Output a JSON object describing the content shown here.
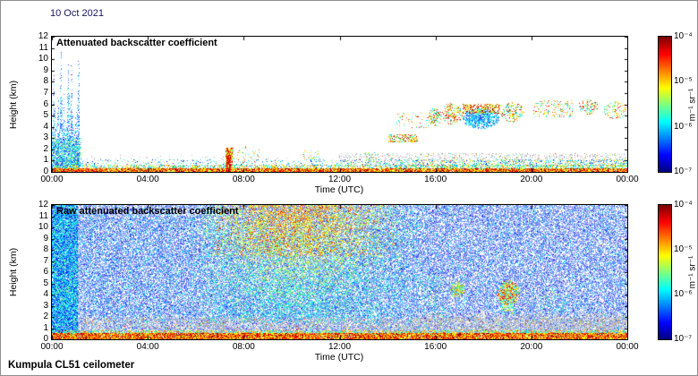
{
  "page": {
    "date_label": "10 Oct 2021",
    "footer": "Kumpula CL51 ceilometer"
  },
  "colors": {
    "date_text": "#15155e",
    "axis_text": "#000000",
    "colormap": "jet"
  },
  "chart_data": [
    {
      "id": "top",
      "type": "heatmap",
      "title": "Attenuated backscatter coefficient",
      "xlabel": "Time (UTC)",
      "ylabel": "Height (km)",
      "x_ticks": [
        "00:00",
        "04:00",
        "08:00",
        "12:00",
        "16:00",
        "20:00",
        "00:00"
      ],
      "y_ticks": [
        0,
        1,
        2,
        3,
        4,
        5,
        6,
        7,
        8,
        9,
        10,
        11,
        12
      ],
      "x_range_hours": [
        0,
        24
      ],
      "y_range_km": [
        0,
        12
      ],
      "colorbar": {
        "ticks": [
          "10⁻⁴",
          "10⁻⁵",
          "10⁻⁶",
          "10⁻⁷"
        ],
        "unit": "m⁻¹ sr⁻¹",
        "scale": "log",
        "min": "1e-7",
        "max": "1e-4",
        "colormap": "jet"
      },
      "seed": 11,
      "features": [
        {
          "kind": "speckle",
          "x": [
            0.03,
            1
          ],
          "h": [
            0.15,
            1.5
          ],
          "density": 0.05,
          "gray": true
        },
        {
          "kind": "speckle",
          "x": [
            0.5,
            1
          ],
          "h": [
            0.5,
            1.6
          ],
          "density": 0.18,
          "gray": true
        },
        {
          "kind": "speckle",
          "x": [
            0.5,
            1
          ],
          "h": [
            0.5,
            1.6
          ],
          "density": 0.03,
          "v": [
            0.25,
            0.85
          ]
        },
        {
          "kind": "plume",
          "x": [
            0,
            0.048
          ],
          "h": [
            0.5,
            11
          ],
          "density": 0.8,
          "v": [
            0.08,
            0.42
          ],
          "alpha": 0.75
        },
        {
          "kind": "speckle",
          "x": [
            0,
            0.05
          ],
          "h": [
            0,
            3
          ],
          "density": 0.5,
          "v": [
            0.15,
            0.6
          ],
          "alpha": 0.8
        },
        {
          "kind": "speckle",
          "x": [
            0,
            1
          ],
          "h": [
            0.25,
            0.6
          ],
          "density": 0.45,
          "v": [
            0.25,
            0.8
          ]
        },
        {
          "kind": "speckle",
          "x": [
            0,
            1
          ],
          "h": [
            0,
            0.25
          ],
          "density": 0.95,
          "v": [
            0.55,
            1
          ]
        },
        {
          "kind": "speckle",
          "x": [
            0,
            1
          ],
          "h": [
            0.6,
            1.1
          ],
          "density": 0.1,
          "v": [
            0.1,
            0.55
          ]
        },
        {
          "kind": "speckle",
          "x": [
            0.6,
            1
          ],
          "h": [
            0.3,
            1.1
          ],
          "density": 0.15,
          "v": [
            0.2,
            0.8
          ]
        },
        {
          "kind": "speckle",
          "x": [
            0.302,
            0.313
          ],
          "h": [
            0,
            2.1
          ],
          "density": 0.85,
          "v": [
            0.45,
            1
          ]
        },
        {
          "kind": "speckle",
          "x": [
            0.304,
            0.31
          ],
          "h": [
            0,
            1.5
          ],
          "density": 0.9,
          "v": [
            0.75,
            1
          ]
        },
        {
          "kind": "speckle",
          "x": [
            0.315,
            0.36
          ],
          "h": [
            0.8,
            2.3
          ],
          "density": 0.1,
          "v": [
            0.3,
            0.9
          ]
        },
        {
          "kind": "speckle",
          "x": [
            0.435,
            0.465
          ],
          "h": [
            1.1,
            1.9
          ],
          "density": 0.12,
          "v": [
            0.3,
            0.8
          ]
        },
        {
          "kind": "speckle",
          "x": [
            0.54,
            0.565
          ],
          "h": [
            0.9,
            1.7
          ],
          "density": 0.1,
          "v": [
            0.3,
            0.75
          ]
        },
        {
          "kind": "speckle",
          "x": [
            0.585,
            0.635
          ],
          "h": [
            2.7,
            3.3
          ],
          "density": 0.5,
          "v": [
            0.35,
            0.95
          ]
        },
        {
          "kind": "speckle",
          "x": [
            0.6,
            0.655
          ],
          "h": [
            3.9,
            5.2
          ],
          "density": 0.1,
          "v": [
            0.3,
            0.9
          ]
        },
        {
          "kind": "blob",
          "cx": 0.665,
          "ch": 4.9,
          "rx": 0.012,
          "rh": 0.8,
          "density": 0.55,
          "v": [
            0.3,
            0.95
          ]
        },
        {
          "kind": "blob",
          "cx": 0.695,
          "ch": 5.2,
          "rx": 0.018,
          "rh": 1.0,
          "density": 0.5,
          "v": [
            0.3,
            0.95
          ]
        },
        {
          "kind": "blob",
          "cx": 0.745,
          "ch": 4.8,
          "rx": 0.032,
          "rh": 0.95,
          "density": 0.85,
          "v": [
            0.12,
            0.45
          ],
          "alpha": 0.85
        },
        {
          "kind": "speckle",
          "x": [
            0.714,
            0.78
          ],
          "h": [
            5.2,
            6.0
          ],
          "density": 0.55,
          "v": [
            0.45,
            1
          ]
        },
        {
          "kind": "blob",
          "cx": 0.8,
          "ch": 5.3,
          "rx": 0.02,
          "rh": 0.9,
          "density": 0.45,
          "v": [
            0.3,
            0.95
          ]
        },
        {
          "kind": "speckle",
          "x": [
            0.838,
            0.905
          ],
          "h": [
            4.9,
            6.3
          ],
          "density": 0.2,
          "v": [
            0.3,
            0.9
          ]
        },
        {
          "kind": "blob",
          "cx": 0.932,
          "ch": 5.8,
          "rx": 0.018,
          "rh": 0.7,
          "density": 0.4,
          "v": [
            0.3,
            0.95
          ]
        },
        {
          "kind": "blob",
          "cx": 0.978,
          "ch": 5.5,
          "rx": 0.02,
          "rh": 0.8,
          "density": 0.35,
          "v": [
            0.3,
            0.9
          ]
        }
      ]
    },
    {
      "id": "bottom",
      "type": "heatmap",
      "title": "Raw attenuated backscatter coefficient",
      "xlabel": "Time (UTC)",
      "ylabel": "Height (km)",
      "x_ticks": [
        "00:00",
        "04:00",
        "08:00",
        "12:00",
        "16:00",
        "20:00",
        "00:00"
      ],
      "y_ticks": [
        0,
        1,
        2,
        3,
        4,
        5,
        6,
        7,
        8,
        9,
        10,
        11,
        12
      ],
      "x_range_hours": [
        0,
        24
      ],
      "y_range_km": [
        0,
        12
      ],
      "colorbar": {
        "ticks": [
          "10⁻⁴",
          "10⁻⁵",
          "10⁻⁶",
          "10⁻⁷"
        ],
        "unit": "m⁻¹ sr⁻¹",
        "scale": "log",
        "min": "1e-7",
        "max": "1e-4",
        "colormap": "jet"
      },
      "seed": 99,
      "features": [
        {
          "kind": "speckle",
          "x": [
            0,
            1
          ],
          "h": [
            0,
            12
          ],
          "density": 0.6,
          "v": [
            0.02,
            0.3
          ],
          "alpha": 0.5
        },
        {
          "kind": "speckle",
          "x": [
            0,
            1
          ],
          "h": [
            0,
            12
          ],
          "density": 0.12,
          "v": [
            0.05,
            0.45
          ],
          "alpha": 0.8
        },
        {
          "kind": "speckle",
          "x": [
            0,
            0.045
          ],
          "h": [
            0,
            12
          ],
          "density": 0.85,
          "v": [
            0.1,
            0.5
          ],
          "alpha": 0.9
        },
        {
          "kind": "speckle",
          "x": [
            0.05,
            0.26
          ],
          "h": [
            2,
            11
          ],
          "density": 0.1,
          "v": [
            0.1,
            0.5
          ],
          "alpha": 0.7
        },
        {
          "kind": "speckle",
          "x": [
            0.26,
            0.64
          ],
          "h": [
            1.5,
            12
          ],
          "density": 0.4,
          "v": [
            0.2,
            0.85
          ],
          "vgrad": "up",
          "gx": 0.43,
          "gw": 0.17,
          "alpha": 0.85
        },
        {
          "kind": "speckle",
          "x": [
            0.28,
            0.6
          ],
          "h": [
            7.5,
            12
          ],
          "density": 0.25,
          "v": [
            0.5,
            0.9
          ],
          "gx": 0.42,
          "gw": 0.13,
          "alpha": 0.9
        },
        {
          "kind": "speckle",
          "x": [
            0.05,
            1
          ],
          "h": [
            0.5,
            1.9
          ],
          "density": 0.4,
          "gray": true
        },
        {
          "kind": "speckle",
          "x": [
            0.05,
            1
          ],
          "h": [
            0.5,
            1.9
          ],
          "density": 0.05,
          "v": [
            0.2,
            0.9
          ]
        },
        {
          "kind": "speckle",
          "x": [
            0.63,
            1
          ],
          "h": [
            0.5,
            2.3
          ],
          "density": 0.3,
          "gray": true
        },
        {
          "kind": "speckle",
          "x": [
            0,
            1
          ],
          "h": [
            0.4,
            0.75
          ],
          "density": 0.5,
          "v": [
            0.3,
            0.8
          ]
        },
        {
          "kind": "speckle",
          "x": [
            0,
            1
          ],
          "h": [
            0,
            0.5
          ],
          "density": 0.95,
          "v": [
            0.55,
            1
          ]
        },
        {
          "kind": "speckle",
          "x": [
            0.645,
            0.68
          ],
          "h": [
            2,
            5.8
          ],
          "density": 0.12,
          "v": [
            0.25,
            0.6
          ]
        },
        {
          "kind": "blob",
          "cx": 0.705,
          "ch": 4.5,
          "rx": 0.014,
          "rh": 0.75,
          "density": 0.8,
          "v": [
            0.35,
            0.8
          ]
        },
        {
          "kind": "blob",
          "cx": 0.792,
          "ch": 4.2,
          "rx": 0.02,
          "rh": 1.15,
          "density": 0.85,
          "v": [
            0.35,
            0.9
          ]
        },
        {
          "kind": "speckle",
          "x": [
            0.78,
            0.805
          ],
          "h": [
            2.3,
            3.4
          ],
          "density": 0.35,
          "v": [
            0.3,
            0.65
          ]
        },
        {
          "kind": "speckle",
          "x": [
            0.85,
            0.9
          ],
          "h": [
            2.3,
            4.2
          ],
          "density": 0.08,
          "v": [
            0.25,
            0.6
          ]
        }
      ]
    }
  ]
}
